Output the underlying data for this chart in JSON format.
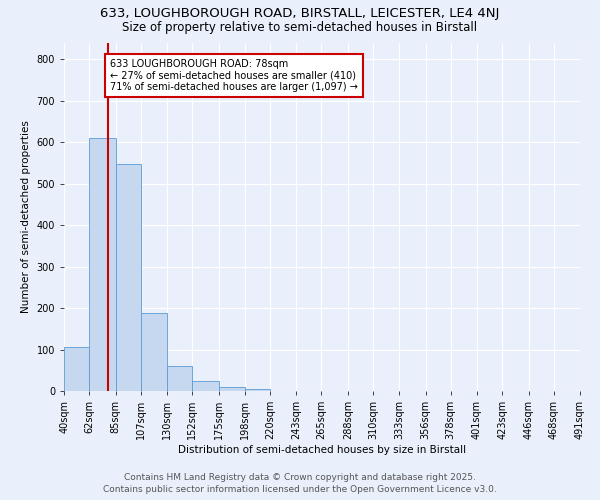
{
  "title_line1": "633, LOUGHBOROUGH ROAD, BIRSTALL, LEICESTER, LE4 4NJ",
  "title_line2": "Size of property relative to semi-detached houses in Birstall",
  "xlabel": "Distribution of semi-detached houses by size in Birstall",
  "ylabel": "Number of semi-detached properties",
  "bar_values": [
    107,
    610,
    548,
    187,
    60,
    25,
    10,
    5,
    0,
    0,
    0,
    0,
    0,
    0,
    0,
    0,
    0,
    0,
    0,
    0
  ],
  "bin_edges": [
    40,
    62,
    85,
    107,
    130,
    152,
    175,
    198,
    220,
    243,
    265,
    288,
    310,
    333,
    356,
    378,
    401,
    423,
    446,
    468,
    491
  ],
  "tick_labels": [
    "40sqm",
    "62sqm",
    "85sqm",
    "107sqm",
    "130sqm",
    "152sqm",
    "175sqm",
    "198sqm",
    "220sqm",
    "243sqm",
    "265sqm",
    "288sqm",
    "310sqm",
    "333sqm",
    "356sqm",
    "378sqm",
    "401sqm",
    "423sqm",
    "446sqm",
    "468sqm",
    "491sqm"
  ],
  "bar_color": "#c5d8f0",
  "bar_edge_color": "#5b9bd5",
  "property_size": 78,
  "vline_color": "#cc0000",
  "annotation_text": "633 LOUGHBOROUGH ROAD: 78sqm\n← 27% of semi-detached houses are smaller (410)\n71% of semi-detached houses are larger (1,097) →",
  "annotation_box_color": "#ffffff",
  "annotation_box_edge": "#cc0000",
  "ylim": [
    0,
    840
  ],
  "yticks": [
    0,
    100,
    200,
    300,
    400,
    500,
    600,
    700,
    800
  ],
  "footer_line1": "Contains HM Land Registry data © Crown copyright and database right 2025.",
  "footer_line2": "Contains public sector information licensed under the Open Government Licence v3.0.",
  "bg_color": "#eaf0fb",
  "plot_bg_color": "#eaf0fb",
  "grid_color": "#ffffff",
  "title_fontsize": 9.5,
  "subtitle_fontsize": 8.5,
  "axis_label_fontsize": 7.5,
  "tick_fontsize": 7,
  "annotation_fontsize": 7,
  "footer_fontsize": 6.5
}
